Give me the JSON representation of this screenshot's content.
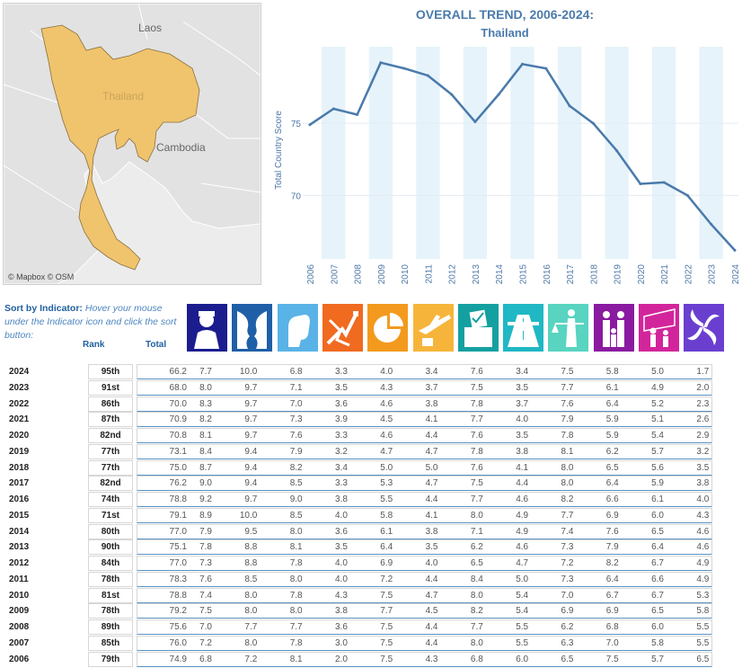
{
  "map": {
    "labels": {
      "laos": "Laos",
      "thailand": "Thailand",
      "cambodia": "Cambodia"
    },
    "credit": "© Mapbox © OSM",
    "colors": {
      "highlight": "#f0c36d",
      "land": "#e2e2e2",
      "water": "#ececec"
    }
  },
  "chart_data": {
    "type": "line",
    "title": "OVERALL TREND, 2006-2024:",
    "subtitle": "Thailand",
    "ylabel": "Total Country Score",
    "x": [
      "2006",
      "2007",
      "2008",
      "2009",
      "2010",
      "2011",
      "2012",
      "2013",
      "2014",
      "2015",
      "2016",
      "2017",
      "2018",
      "2019",
      "2020",
      "2021",
      "2022",
      "2023",
      "2024"
    ],
    "series": [
      {
        "values": [
          74.9,
          76.0,
          75.6,
          79.2,
          78.8,
          78.3,
          77.0,
          75.1,
          77.0,
          79.1,
          78.8,
          76.2,
          75.0,
          73.1,
          70.8,
          70.9,
          70.0,
          68.0,
          66.2
        ]
      }
    ],
    "yticks": [
      70,
      75
    ],
    "ylim": [
      65.6,
      80.3
    ],
    "grid": true,
    "line_color": "#4a7aab",
    "band_color": "#e6f3fa"
  },
  "sort_note": {
    "bold": "Sort by Indicator:",
    "italic": "Hover your mouse under the Indicator icon and click the sort button:"
  },
  "table": {
    "rank_header": "Rank",
    "total_header": "Total",
    "indicator_icons": [
      {
        "name": "security-icon",
        "color": "#1b1d8f"
      },
      {
        "name": "faces-icon",
        "color": "#1f5fa8"
      },
      {
        "name": "fist-icon",
        "color": "#5ab3e6"
      },
      {
        "name": "arrows-icon",
        "color": "#f06a1f"
      },
      {
        "name": "pie-icon",
        "color": "#f39a1e"
      },
      {
        "name": "plane-icon",
        "color": "#f6b53a"
      },
      {
        "name": "ballot-icon",
        "color": "#14a0a0"
      },
      {
        "name": "road-icon",
        "color": "#1fb8c4"
      },
      {
        "name": "justice-icon",
        "color": "#58d4c0"
      },
      {
        "name": "family-icon",
        "color": "#8a1aa0"
      },
      {
        "name": "refugees-icon",
        "color": "#d2259b"
      },
      {
        "name": "swirl-icon",
        "color": "#6a3fd0"
      }
    ],
    "rows": [
      {
        "year": "2024",
        "rank": "95th",
        "total": "66.2",
        "vals": [
          "7.7",
          "10.0",
          "6.8",
          "3.3",
          "4.0",
          "3.4",
          "7.6",
          "3.4",
          "7.5",
          "5.8",
          "5.0",
          "1.7"
        ]
      },
      {
        "year": "2023",
        "rank": "91st",
        "total": "68.0",
        "vals": [
          "8.0",
          "9.7",
          "7.1",
          "3.5",
          "4.3",
          "3.7",
          "7.5",
          "3.5",
          "7.7",
          "6.1",
          "4.9",
          "2.0"
        ]
      },
      {
        "year": "2022",
        "rank": "86th",
        "total": "70.0",
        "vals": [
          "8.3",
          "9.7",
          "7.0",
          "3.6",
          "4.6",
          "3.8",
          "7.8",
          "3.7",
          "7.6",
          "6.4",
          "5.2",
          "2.3"
        ]
      },
      {
        "year": "2021",
        "rank": "87th",
        "total": "70.9",
        "vals": [
          "8.2",
          "9.7",
          "7.3",
          "3.9",
          "4.5",
          "4.1",
          "7.7",
          "4.0",
          "7.9",
          "5.9",
          "5.1",
          "2.6"
        ]
      },
      {
        "year": "2020",
        "rank": "82nd",
        "total": "70.8",
        "vals": [
          "8.1",
          "9.7",
          "7.6",
          "3.3",
          "4.6",
          "4.4",
          "7.6",
          "3.5",
          "7.8",
          "5.9",
          "5.4",
          "2.9"
        ]
      },
      {
        "year": "2019",
        "rank": "77th",
        "total": "73.1",
        "vals": [
          "8.4",
          "9.4",
          "7.9",
          "3.2",
          "4.7",
          "4.7",
          "7.8",
          "3.8",
          "8.1",
          "6.2",
          "5.7",
          "3.2"
        ]
      },
      {
        "year": "2018",
        "rank": "77th",
        "total": "75.0",
        "vals": [
          "8.7",
          "9.4",
          "8.2",
          "3.4",
          "5.0",
          "5.0",
          "7.6",
          "4.1",
          "8.0",
          "6.5",
          "5.6",
          "3.5"
        ]
      },
      {
        "year": "2017",
        "rank": "82nd",
        "total": "76.2",
        "vals": [
          "9.0",
          "9.4",
          "8.5",
          "3.3",
          "5.3",
          "4.7",
          "7.5",
          "4.4",
          "8.0",
          "6.4",
          "5.9",
          "3.8"
        ]
      },
      {
        "year": "2016",
        "rank": "74th",
        "total": "78.8",
        "vals": [
          "9.2",
          "9.7",
          "9.0",
          "3.8",
          "5.5",
          "4.4",
          "7.7",
          "4.6",
          "8.2",
          "6.6",
          "6.1",
          "4.0"
        ]
      },
      {
        "year": "2015",
        "rank": "71st",
        "total": "79.1",
        "vals": [
          "8.9",
          "10.0",
          "8.5",
          "4.0",
          "5.8",
          "4.1",
          "8.0",
          "4.9",
          "7.7",
          "6.9",
          "6.0",
          "4.3"
        ]
      },
      {
        "year": "2014",
        "rank": "80th",
        "total": "77.0",
        "vals": [
          "7.9",
          "9.5",
          "8.0",
          "3.6",
          "6.1",
          "3.8",
          "7.1",
          "4.9",
          "7.4",
          "7.6",
          "6.5",
          "4.6"
        ]
      },
      {
        "year": "2013",
        "rank": "90th",
        "total": "75.1",
        "vals": [
          "7.8",
          "8.8",
          "8.1",
          "3.5",
          "6.4",
          "3.5",
          "6.2",
          "4.6",
          "7.3",
          "7.9",
          "6.4",
          "4.6"
        ]
      },
      {
        "year": "2012",
        "rank": "84th",
        "total": "77.0",
        "vals": [
          "7.3",
          "8.8",
          "7.8",
          "4.0",
          "6.9",
          "4.0",
          "6.5",
          "4.7",
          "7.2",
          "8.2",
          "6.7",
          "4.9"
        ]
      },
      {
        "year": "2011",
        "rank": "78th",
        "total": "78.3",
        "vals": [
          "7.6",
          "8.5",
          "8.0",
          "4.0",
          "7.2",
          "4.4",
          "8.4",
          "5.0",
          "7.3",
          "6.4",
          "6.6",
          "4.9"
        ]
      },
      {
        "year": "2010",
        "rank": "81st",
        "total": "78.8",
        "vals": [
          "7.4",
          "8.0",
          "7.8",
          "4.3",
          "7.5",
          "4.7",
          "8.0",
          "5.4",
          "7.0",
          "6.7",
          "6.7",
          "5.3"
        ]
      },
      {
        "year": "2009",
        "rank": "78th",
        "total": "79.2",
        "vals": [
          "7.5",
          "8.0",
          "8.0",
          "3.8",
          "7.7",
          "4.5",
          "8.2",
          "5.4",
          "6.9",
          "6.9",
          "6.5",
          "5.8"
        ]
      },
      {
        "year": "2008",
        "rank": "89th",
        "total": "75.6",
        "vals": [
          "7.0",
          "7.7",
          "7.7",
          "3.6",
          "7.5",
          "4.4",
          "7.7",
          "5.5",
          "6.2",
          "6.8",
          "6.0",
          "5.5"
        ]
      },
      {
        "year": "2007",
        "rank": "85th",
        "total": "76.0",
        "vals": [
          "7.2",
          "8.0",
          "7.8",
          "3.0",
          "7.5",
          "4.4",
          "8.0",
          "5.5",
          "6.3",
          "7.0",
          "5.8",
          "5.5"
        ]
      },
      {
        "year": "2006",
        "rank": "79th",
        "total": "74.9",
        "vals": [
          "6.8",
          "7.2",
          "8.1",
          "2.0",
          "7.5",
          "4.3",
          "6.8",
          "6.0",
          "6.5",
          "7.5",
          "5.7",
          "6.5"
        ]
      }
    ]
  }
}
